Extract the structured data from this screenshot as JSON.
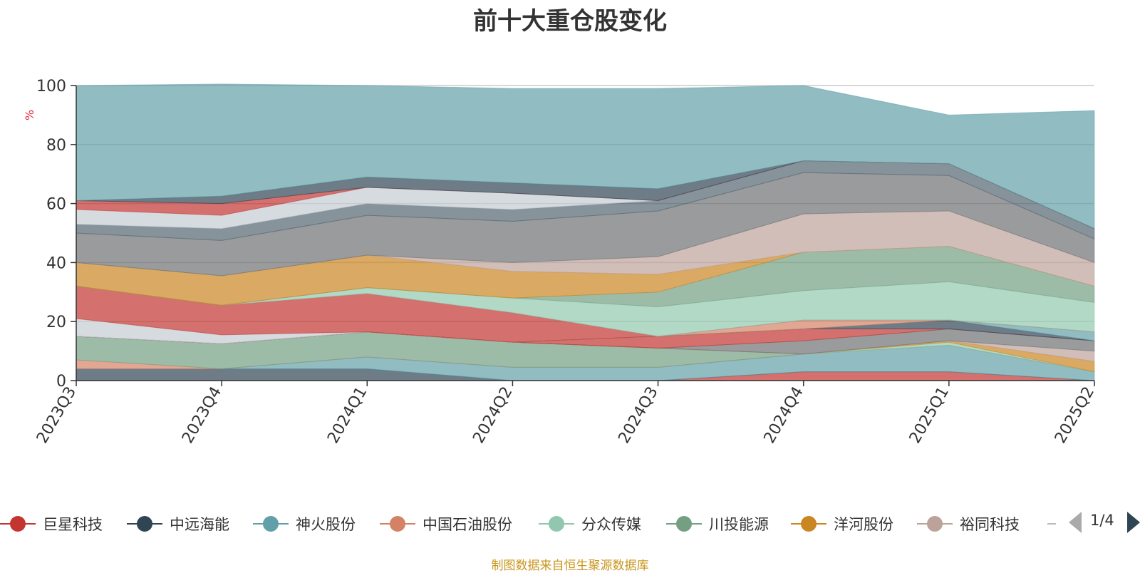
{
  "chart_data": {
    "type": "area",
    "stacked": true,
    "title": "前十大重仓股变化",
    "ylabel": "%",
    "ylim": [
      0,
      100
    ],
    "yticks": [
      "0",
      "20",
      "40",
      "60",
      "80",
      "100"
    ],
    "categories": [
      "2023Q3",
      "2023Q4",
      "2024Q1",
      "2024Q2",
      "2024Q3",
      "2024Q4",
      "2025Q1",
      "2025Q2"
    ],
    "grid": true,
    "legend": {
      "position": "bottom",
      "page": "1/4",
      "items": [
        {
          "name": "巨星科技",
          "color": "#c23531"
        },
        {
          "name": "中远海能",
          "color": "#2f4554"
        },
        {
          "name": "神火股份",
          "color": "#61a0a8"
        },
        {
          "name": "中国石油股份",
          "color": "#d48265"
        },
        {
          "name": "分众传媒",
          "color": "#91c7ae"
        },
        {
          "name": "川投能源",
          "color": "#749f83"
        },
        {
          "name": "洋河股份",
          "color": "#ca8622"
        },
        {
          "name": "裕同科技",
          "color": "#bda29a"
        }
      ]
    },
    "layers": [
      {
        "color": "#c23531",
        "values": [
          0,
          0,
          0,
          0,
          0,
          3,
          3,
          0
        ]
      },
      {
        "color": "#2f4554",
        "values": [
          4,
          4,
          4,
          0,
          0,
          0,
          0,
          0
        ]
      },
      {
        "color": "#61a0a8",
        "values": [
          0,
          0,
          4,
          4.5,
          4.5,
          6,
          9,
          3
        ]
      },
      {
        "color": "#d48265",
        "values": [
          3,
          0,
          0,
          0,
          0,
          0,
          0,
          0
        ]
      },
      {
        "color": "#749f83",
        "values": [
          8,
          8.5,
          8.5,
          8.5,
          6.5,
          0,
          0,
          0
        ]
      },
      {
        "color": "#91c7ae",
        "values": [
          0,
          0,
          0,
          0,
          0,
          0,
          1,
          0
        ]
      },
      {
        "color": "#ca8622",
        "values": [
          0,
          0,
          0,
          0,
          0,
          0,
          0.5,
          3.5
        ]
      },
      {
        "color": "#bda29a",
        "values": [
          0,
          0,
          0,
          0,
          0,
          0,
          0,
          3.5
        ]
      },
      {
        "color": "#6e7074",
        "values": [
          0,
          0,
          0,
          0,
          0,
          4.5,
          4,
          3.5
        ]
      },
      {
        "color": "#c23531",
        "values": [
          0,
          0,
          0,
          0,
          4,
          4,
          0,
          0
        ]
      },
      {
        "color": "#2f4554",
        "values": [
          0,
          0,
          0,
          0,
          0,
          0,
          3,
          0
        ]
      },
      {
        "color": "#61a0a8",
        "values": [
          0,
          0,
          0,
          0,
          0,
          0,
          0,
          3
        ]
      },
      {
        "color": "#d48265",
        "values": [
          0,
          0,
          0,
          0,
          0,
          3,
          0,
          0
        ]
      },
      {
        "color": "#c4ccd3",
        "values": [
          6,
          3,
          0,
          0,
          0,
          0,
          0,
          0
        ]
      },
      {
        "color": "#c23531",
        "values": [
          11,
          10,
          13,
          10,
          0,
          0,
          0,
          0
        ]
      },
      {
        "color": "#91c7ae",
        "values": [
          0,
          0,
          2,
          5,
          10,
          10,
          13,
          10
        ]
      },
      {
        "color": "#749f83",
        "values": [
          0,
          0,
          0,
          0,
          5,
          13,
          12,
          5.5
        ]
      },
      {
        "color": "#ca8622",
        "values": [
          8,
          10,
          11,
          9,
          6,
          0,
          0,
          0
        ]
      },
      {
        "color": "#bda29a",
        "values": [
          0,
          0,
          0,
          3,
          6,
          13,
          12,
          8
        ]
      },
      {
        "color": "#6e7074",
        "values": [
          10,
          12,
          13.5,
          14,
          15.5,
          14,
          12,
          8
        ]
      },
      {
        "color": "#546570",
        "values": [
          3,
          4,
          4,
          4,
          3.5,
          4,
          4,
          3.5
        ]
      },
      {
        "color": "#c4ccd3",
        "values": [
          5,
          4.5,
          5.5,
          5.5,
          0,
          0,
          0,
          0
        ]
      },
      {
        "color": "#c23531",
        "values": [
          3,
          4,
          0,
          0,
          0,
          0,
          0,
          0
        ]
      },
      {
        "color": "#2f4554",
        "values": [
          0,
          2.5,
          3.5,
          3.5,
          4,
          0,
          0,
          0
        ]
      },
      {
        "color": "#61a0a8",
        "values": [
          39,
          38,
          31,
          32,
          34,
          25.5,
          16.5,
          40
        ]
      }
    ]
  },
  "footer": "制图数据来自恒生聚源数据库"
}
